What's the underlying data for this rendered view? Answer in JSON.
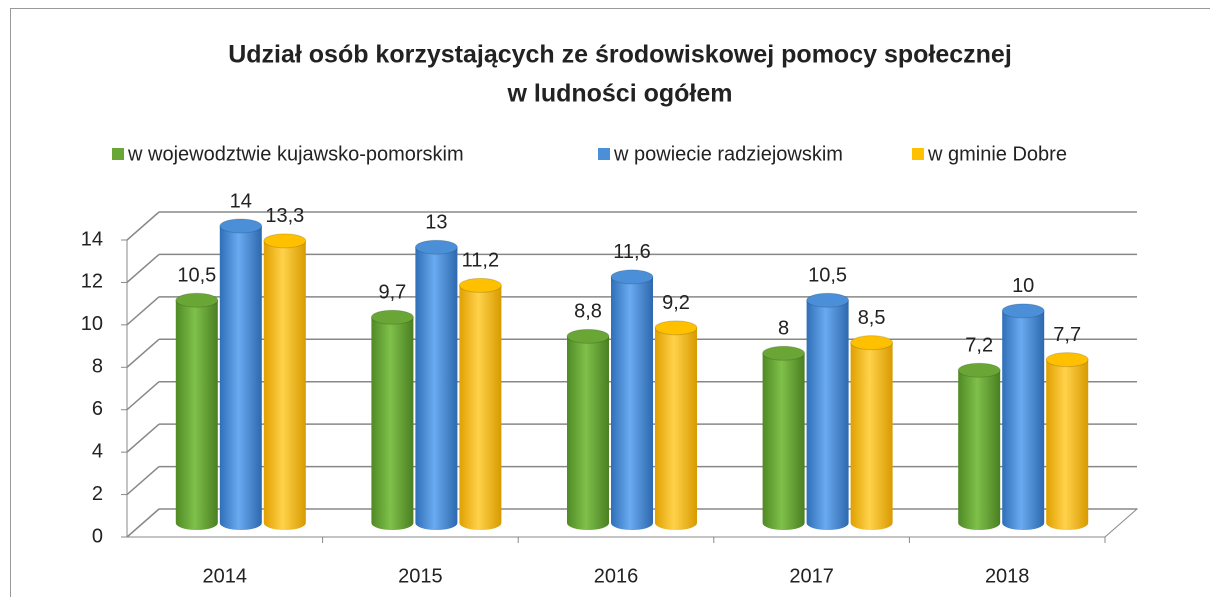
{
  "chart_data": {
    "type": "bar3d",
    "title": [
      "Udział osób korzystających ze środowiskowej pomocy społecznej",
      "w ludności ogółem"
    ],
    "categories": [
      "2014",
      "2015",
      "2016",
      "2017",
      "2018"
    ],
    "series": [
      {
        "name": "w wojewodztwie kujawsko-pomorskim",
        "color": "#6aa636",
        "values": [
          10.5,
          9.7,
          8.8,
          8,
          7.2
        ],
        "value_labels": [
          "10,5",
          "9,7",
          "8,8",
          "8",
          "7,2"
        ]
      },
      {
        "name": "w powiecie radziejowskim",
        "color": "#4a8fd8",
        "values": [
          14,
          13,
          11.6,
          10.5,
          10
        ],
        "value_labels": [
          "14",
          "13",
          "11,6",
          "10,5",
          "10"
        ]
      },
      {
        "name": "w gminie Dobre",
        "color": "#ffc000",
        "values": [
          13.3,
          11.2,
          9.2,
          8.5,
          7.7
        ],
        "value_labels": [
          "13,3",
          "11,2",
          "9,2",
          "8,5",
          "7,7"
        ]
      }
    ],
    "ylim": [
      0,
      14
    ],
    "yticks": [
      0,
      2,
      4,
      6,
      8,
      10,
      12,
      14
    ],
    "grid": true,
    "legend": "top"
  }
}
